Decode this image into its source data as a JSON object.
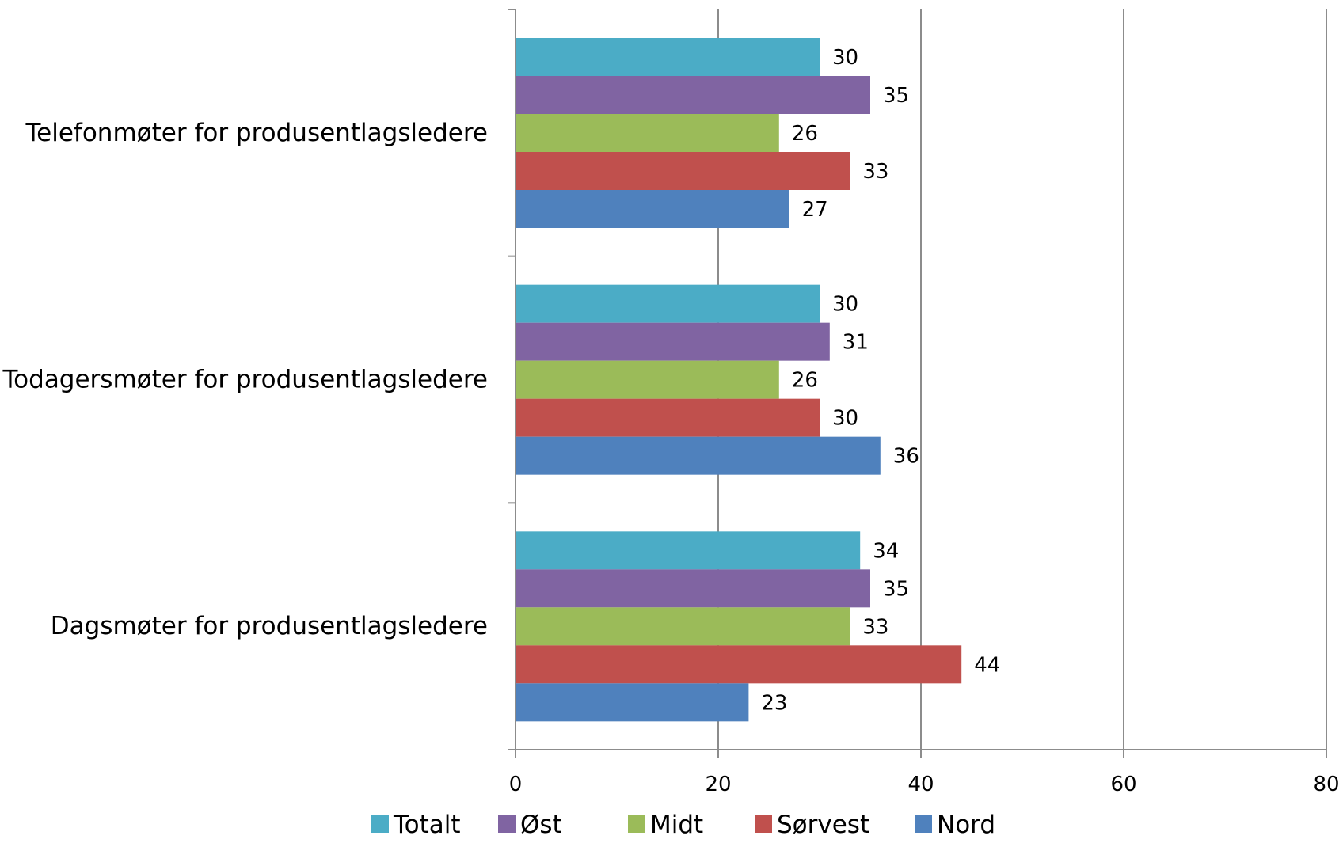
{
  "chart_data": {
    "type": "bar",
    "orientation": "horizontal",
    "title": "",
    "xlabel": "",
    "ylabel": "",
    "categories": [
      "Telefonmøter for produsentlagsledere",
      "Todagersmøter for produsentlagsledere",
      "Dagsmøter for produsentlagsledere"
    ],
    "series": [
      {
        "name": "Totalt",
        "color": "#4BACC6",
        "values": [
          30,
          30,
          34
        ]
      },
      {
        "name": "Øst",
        "color": "#8064A2",
        "values": [
          35,
          31,
          35
        ]
      },
      {
        "name": "Midt",
        "color": "#9BBB59",
        "values": [
          26,
          26,
          33
        ]
      },
      {
        "name": "Sørvest",
        "color": "#C0504D",
        "values": [
          33,
          30,
          44
        ]
      },
      {
        "name": "Nord",
        "color": "#4F81BD",
        "values": [
          27,
          36,
          23
        ]
      }
    ],
    "xlim": [
      0,
      80
    ],
    "xticks": [
      0,
      20,
      40,
      60,
      80
    ],
    "xtick_labels": [
      "0",
      "20",
      "40",
      "60",
      "80"
    ],
    "grid": "vertical",
    "data_labels": true,
    "legend": "bottom"
  }
}
